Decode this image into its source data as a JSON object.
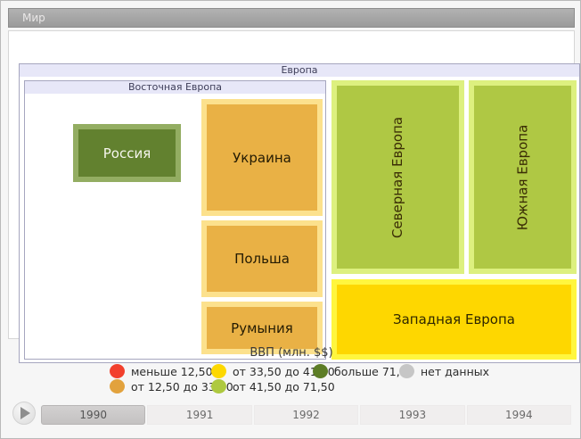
{
  "window": {
    "title": "Мир"
  },
  "treemap": {
    "europe_label": "Европа",
    "eastern_label": "Восточная Европа",
    "nodes": {
      "russia": {
        "label": "Россия",
        "fill": "#62812f",
        "border": "#93ad62"
      },
      "ukraine": {
        "label": "Украина",
        "fill": "#e9b145",
        "border": "#fce18d"
      },
      "poland": {
        "label": "Польша",
        "fill": "#e9b145",
        "border": "#fce18d"
      },
      "romania": {
        "label": "Румыния",
        "fill": "#e9b145",
        "border": "#fce18d"
      },
      "northern": {
        "label": "Северная Европа",
        "fill": "#afc844",
        "border": "#ddf07f"
      },
      "southern": {
        "label": "Южная Европа",
        "fill": "#afc844",
        "border": "#ddf07f"
      },
      "western": {
        "label": "Западная Европа",
        "fill": "#fed700",
        "border": "#fff63e"
      }
    }
  },
  "legend": {
    "title": "ВВП (млн. $$)",
    "rows": [
      [
        {
          "label": "меньше 12,50",
          "color": "#f2402d"
        },
        {
          "label": "от 33,50 до 41,50",
          "color": "#fdd800"
        },
        {
          "label": "больше 71,50",
          "color": "#5d7d26"
        },
        {
          "label": "нет данных",
          "color": "#c6c6c6"
        }
      ],
      [
        {
          "label": "от 12,50 до 33,50",
          "color": "#e2a23d"
        },
        {
          "label": "от 41,50 до 71,50",
          "color": "#aec940"
        }
      ]
    ]
  },
  "timeline": {
    "years": [
      "1990",
      "1991",
      "1992",
      "1993",
      "1994"
    ],
    "selected_year": "1990"
  },
  "chart_data": {
    "type": "treemap",
    "title": "ВВП (млн. $$)",
    "root": "Мир",
    "selected_year": "1990",
    "timeline_years": [
      "1990",
      "1991",
      "1992",
      "1993",
      "1994"
    ],
    "legend_position": "bottom",
    "legend_bins": [
      {
        "label": "меньше 12,50",
        "color": "#f2402d"
      },
      {
        "label": "от 12,50 до 33,50",
        "color": "#e2a23d"
      },
      {
        "label": "от 33,50 до 41,50",
        "color": "#fdd800"
      },
      {
        "label": "от 41,50 до 71,50",
        "color": "#aec940"
      },
      {
        "label": "больше 71,50",
        "color": "#5d7d26"
      },
      {
        "label": "нет данных",
        "color": "#c6c6c6"
      }
    ],
    "hierarchy": [
      {
        "name": "Европа",
        "children": [
          {
            "name": "Восточная Европа",
            "children": [
              {
                "name": "Россия",
                "gdp_bin": "больше 71,50"
              },
              {
                "name": "Украина",
                "gdp_bin": "от 12,50 до 33,50"
              },
              {
                "name": "Польша",
                "gdp_bin": "от 12,50 до 33,50"
              },
              {
                "name": "Румыния",
                "gdp_bin": "от 12,50 до 33,50"
              }
            ]
          },
          {
            "name": "Северная Европа",
            "gdp_bin": "от 41,50 до 71,50"
          },
          {
            "name": "Южная Европа",
            "gdp_bin": "от 41,50 до 71,50"
          },
          {
            "name": "Западная Европа",
            "gdp_bin": "от 33,50 до 41,50"
          }
        ]
      }
    ]
  }
}
